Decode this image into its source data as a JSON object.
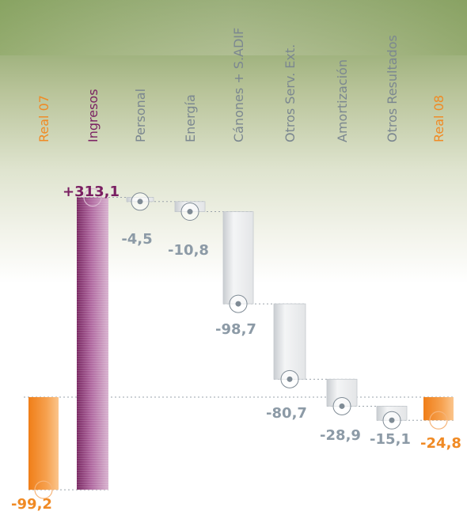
{
  "chart_data": {
    "type": "waterfall",
    "categories": [
      "Real 07",
      "Ingresos",
      "Personal",
      "Energía",
      "Cánones + S.ADIF",
      "Otros Serv. Ext.",
      "Amortización",
      "Otros Resultados",
      "Real 08"
    ],
    "values": [
      -99.2,
      313.1,
      -4.5,
      -10.8,
      -98.7,
      -80.7,
      -28.9,
      -15.1,
      -24.8
    ],
    "value_labels": [
      "-99,2",
      "+313,1",
      "-4,5",
      "-10,8",
      "-98,7",
      "-80,7",
      "-28,9",
      "-15,1",
      "-24,8"
    ],
    "kinds": [
      "total",
      "increase",
      "decrease",
      "decrease",
      "decrease",
      "decrease",
      "decrease",
      "decrease",
      "total"
    ],
    "baseline": 0,
    "colors": {
      "total": "#f28c28",
      "increase": "#8a2f70",
      "decrease": "#d7d9dc",
      "label_total": "#f08a24",
      "label_increase": "#7a1f62",
      "label_decrease": "#8c9aa6",
      "category_default": "#7b8790",
      "marker": "#7f8b95"
    }
  }
}
